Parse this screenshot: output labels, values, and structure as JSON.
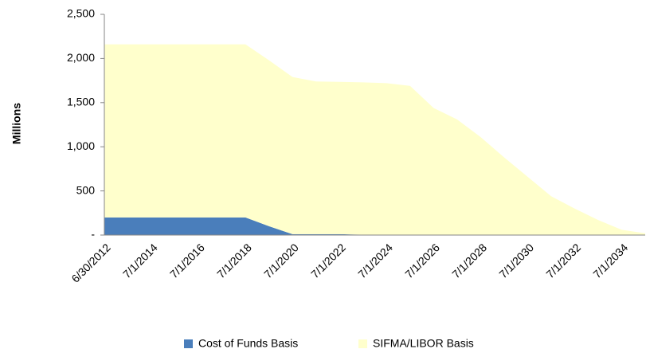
{
  "chart_data": {
    "type": "stacked_area",
    "y_label": "Millions",
    "categories": [
      "6/30/2012",
      null,
      "7/1/2014",
      null,
      "7/1/2016",
      null,
      "7/1/2018",
      null,
      "7/1/2020",
      null,
      "7/1/2022",
      null,
      "7/1/2024",
      null,
      "7/1/2026",
      null,
      "7/1/2028",
      null,
      "7/1/2030",
      null,
      "7/1/2032",
      null,
      "7/1/2034",
      null
    ],
    "series": [
      {
        "name": "Cost of Funds Basis",
        "color": "#4a7ebb",
        "values": [
          200,
          200,
          200,
          200,
          200,
          200,
          200,
          100,
          10,
          10,
          10,
          5,
          5,
          0,
          0,
          0,
          0,
          0,
          0,
          0,
          0,
          0,
          0,
          0
        ]
      },
      {
        "name": "SIFMA/LIBOR Basis",
        "color": "#ffffcc",
        "values": [
          1960,
          1960,
          1960,
          1960,
          1960,
          1960,
          1960,
          1880,
          1780,
          1730,
          1725,
          1725,
          1715,
          1690,
          1440,
          1310,
          1110,
          880,
          660,
          440,
          300,
          170,
          60,
          20
        ]
      }
    ],
    "ylim": [
      0,
      2500
    ],
    "yticks": [
      {
        "value": 0,
        "label": "-"
      },
      500,
      {
        "value": 1000,
        "label": "1,000"
      },
      {
        "value": 1500,
        "label": "1,500"
      },
      {
        "value": 2000,
        "label": "2,000"
      },
      {
        "value": 2500,
        "label": "2,500"
      }
    ],
    "legend": "bottom"
  }
}
